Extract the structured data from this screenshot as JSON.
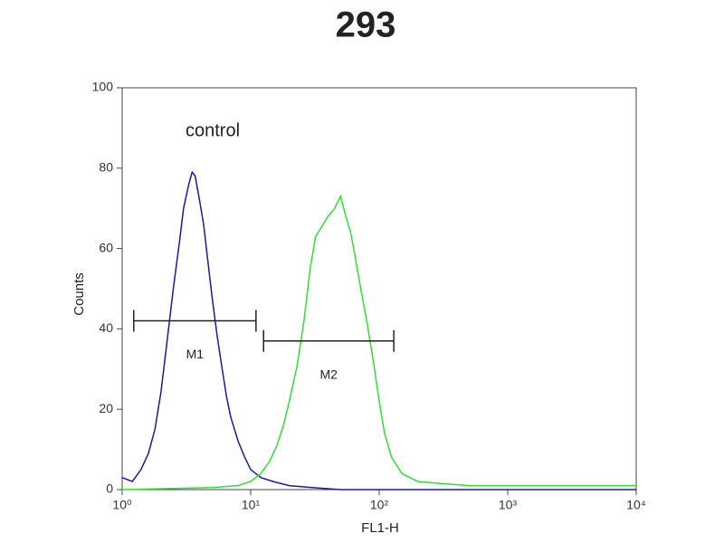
{
  "chart_data": {
    "type": "line",
    "title": "293",
    "x_label": "FL1-H",
    "y_label": "Counts",
    "annotation": "control",
    "xscale": "log",
    "xlim": [
      1,
      10000
    ],
    "ylim": [
      0,
      100
    ],
    "xticks": [
      {
        "value": 1,
        "label": "10⁰"
      },
      {
        "value": 10,
        "label": "10¹"
      },
      {
        "value": 100,
        "label": "10²"
      },
      {
        "value": 1000,
        "label": "10³"
      },
      {
        "value": 10000,
        "label": "10⁴"
      }
    ],
    "yticks": [
      0,
      20,
      40,
      60,
      80,
      100
    ],
    "series": [
      {
        "color": "#1a1aa0",
        "x": [
          1.0,
          1.2,
          1.4,
          1.6,
          1.8,
          2.0,
          2.2,
          2.5,
          2.8,
          3.0,
          3.3,
          3.5,
          3.7,
          4.0,
          4.3,
          4.6,
          5.0,
          5.5,
          6.0,
          6.5,
          7.0,
          8.0,
          9.0,
          10,
          12,
          15,
          20,
          30,
          50,
          100,
          1000,
          10000
        ],
        "values": [
          3,
          2,
          5,
          9,
          15,
          24,
          35,
          50,
          62,
          70,
          76,
          79,
          78,
          72,
          66,
          58,
          48,
          38,
          30,
          23,
          18,
          12,
          8,
          5,
          3,
          2,
          1,
          0.5,
          0,
          0,
          0,
          0
        ]
      },
      {
        "color": "#33dd33",
        "x": [
          1,
          5,
          8,
          10,
          12,
          14,
          16,
          18,
          20,
          23,
          26,
          29,
          32,
          35,
          40,
          45,
          50,
          55,
          60,
          65,
          70,
          80,
          90,
          100,
          110,
          125,
          150,
          200,
          300,
          500,
          1000,
          3000,
          10000
        ],
        "values": [
          0,
          0.5,
          1,
          2,
          4,
          7,
          11,
          16,
          22,
          31,
          42,
          55,
          63,
          65,
          68,
          70,
          73,
          68,
          64,
          58,
          52,
          42,
          32,
          22,
          14,
          8,
          4,
          2,
          1.5,
          1,
          1,
          1,
          1
        ]
      }
    ],
    "markers": [
      {
        "label": "M1",
        "x": [
          1.23,
          11.0
        ],
        "y": 42
      },
      {
        "label": "M2",
        "x": [
          12.6,
          130
        ],
        "y": 37
      }
    ]
  }
}
